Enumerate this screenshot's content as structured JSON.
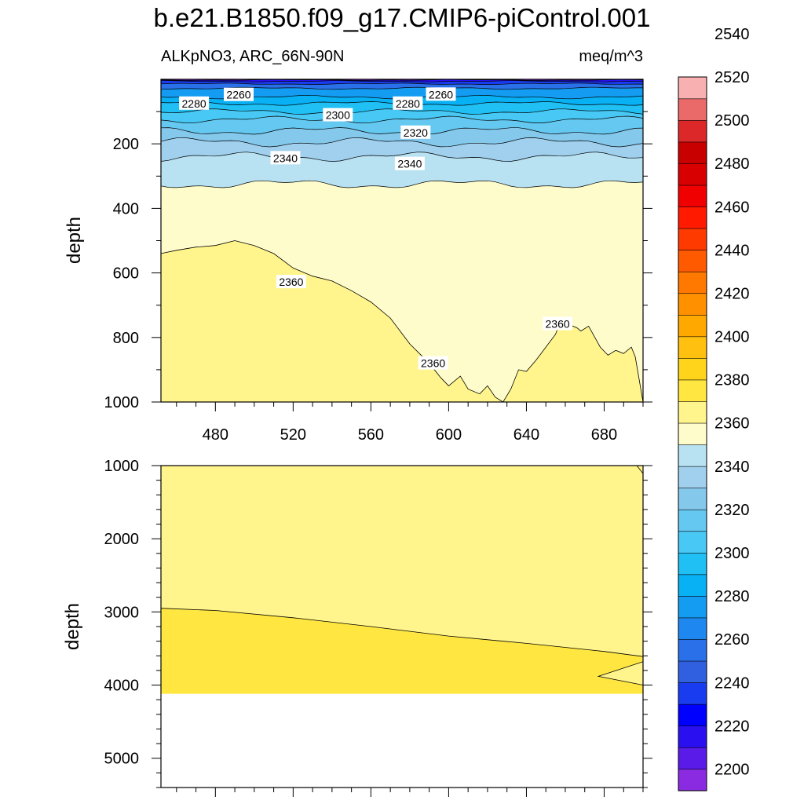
{
  "title": "b.e21.B1850.f09_g17.CMIP6-piControl.001",
  "left_title": "ALKpNO3, ARC_66N-90N",
  "right_title": "meq/m^3",
  "colors": {
    "levels": [
      "#8a2be2",
      "#5a1ae8",
      "#2a10f0",
      "#0000ff",
      "#1a3cf0",
      "#3060e0",
      "#2a70e8",
      "#1e88f0",
      "#139cf2",
      "#08b0f4",
      "#20c0f4",
      "#48c8f4",
      "#64c8f0",
      "#84c8ec",
      "#a0d0ee",
      "#b8e2f2",
      "#fffccc",
      "#fff58c",
      "#ffe640",
      "#ffd41a",
      "#ffc010",
      "#ffa800",
      "#ff9000",
      "#ff7800",
      "#ff5a00",
      "#ff3a00",
      "#ff1a00",
      "#f00000",
      "#d80000",
      "#c80000",
      "#dc2828",
      "#ea6a6a",
      "#f8b0b0"
    ],
    "below_floor": "#ffffff",
    "contour_line": "#000000"
  },
  "chart_data": [
    {
      "type": "contour",
      "panel": "upper",
      "ylabel": "depth",
      "xlim": [
        452,
        700
      ],
      "ylim": [
        1000,
        0
      ],
      "x_ticks": [
        480,
        520,
        560,
        600,
        640,
        680
      ],
      "y_ticks": [
        200,
        400,
        600,
        800,
        1000
      ],
      "contour_labels": [
        {
          "value": "2260",
          "x": 492,
          "y": 48
        },
        {
          "value": "2260",
          "x": 596,
          "y": 47
        },
        {
          "value": "2280",
          "x": 469,
          "y": 75
        },
        {
          "value": "2280",
          "x": 579,
          "y": 75
        },
        {
          "value": "2300",
          "x": 543,
          "y": 111
        },
        {
          "value": "2320",
          "x": 583,
          "y": 165
        },
        {
          "value": "2340",
          "x": 516,
          "y": 244
        },
        {
          "value": "2340",
          "x": 580,
          "y": 262
        },
        {
          "value": "2360",
          "x": 519,
          "y": 628
        },
        {
          "value": "2360",
          "x": 592,
          "y": 880
        },
        {
          "value": "2360",
          "x": 656,
          "y": 758
        }
      ],
      "surface_levels": [
        {
          "value": 2200,
          "depth": 2
        },
        {
          "value": 2220,
          "depth": 6
        },
        {
          "value": 2240,
          "depth": 14
        },
        {
          "value": 2260,
          "depth": 28
        },
        {
          "value": 2280,
          "depth": 55
        },
        {
          "value": 2290,
          "depth": 75
        },
        {
          "value": 2300,
          "depth": 100
        },
        {
          "value": 2310,
          "depth": 125
        },
        {
          "value": 2320,
          "depth": 160
        },
        {
          "value": 2330,
          "depth": 195
        },
        {
          "value": 2340,
          "depth": 240
        },
        {
          "value": 2350,
          "depth": 325
        }
      ],
      "isoline_2360": [
        [
          452,
          540
        ],
        [
          460,
          530
        ],
        [
          470,
          520
        ],
        [
          480,
          515
        ],
        [
          490,
          500
        ],
        [
          500,
          515
        ],
        [
          510,
          540
        ],
        [
          520,
          585
        ],
        [
          530,
          610
        ],
        [
          540,
          625
        ],
        [
          550,
          655
        ],
        [
          560,
          690
        ],
        [
          570,
          740
        ],
        [
          580,
          820
        ],
        [
          590,
          880
        ],
        [
          596,
          925
        ],
        [
          600,
          950
        ],
        [
          606,
          920
        ],
        [
          610,
          960
        ],
        [
          616,
          975
        ],
        [
          620,
          950
        ],
        [
          624,
          985
        ],
        [
          628,
          1000
        ],
        [
          632,
          960
        ],
        [
          636,
          900
        ],
        [
          640,
          905
        ],
        [
          645,
          870
        ],
        [
          650,
          830
        ],
        [
          655,
          790
        ],
        [
          658,
          740
        ],
        [
          662,
          760
        ],
        [
          666,
          770
        ],
        [
          668,
          780
        ],
        [
          672,
          765
        ],
        [
          678,
          830
        ],
        [
          682,
          855
        ],
        [
          686,
          840
        ],
        [
          690,
          850
        ],
        [
          694,
          830
        ],
        [
          696,
          860
        ],
        [
          700,
          1000
        ]
      ]
    },
    {
      "type": "contour",
      "panel": "lower",
      "ylabel": "depth",
      "xlim": [
        452,
        700
      ],
      "ylim": [
        5400,
        1000
      ],
      "y_ticks": [
        1000,
        2000,
        3000,
        4000,
        5000
      ],
      "boundary_2370": [
        [
          452,
          2950
        ],
        [
          480,
          2980
        ],
        [
          520,
          3080
        ],
        [
          560,
          3200
        ],
        [
          600,
          3330
        ],
        [
          640,
          3430
        ],
        [
          680,
          3540
        ],
        [
          700,
          3610
        ]
      ],
      "tongue_2360": [
        [
          700,
          3680
        ],
        [
          677,
          3880
        ],
        [
          700,
          4000
        ]
      ],
      "floor_depth": 4120
    }
  ],
  "colorbar": {
    "min": 2190,
    "step": 10,
    "labels": [
      "2540",
      "2520",
      "2500",
      "2480",
      "2460",
      "2440",
      "2420",
      "2400",
      "2380",
      "2360",
      "2340",
      "2320",
      "2300",
      "2280",
      "2260",
      "2240",
      "2220",
      "2200"
    ]
  }
}
